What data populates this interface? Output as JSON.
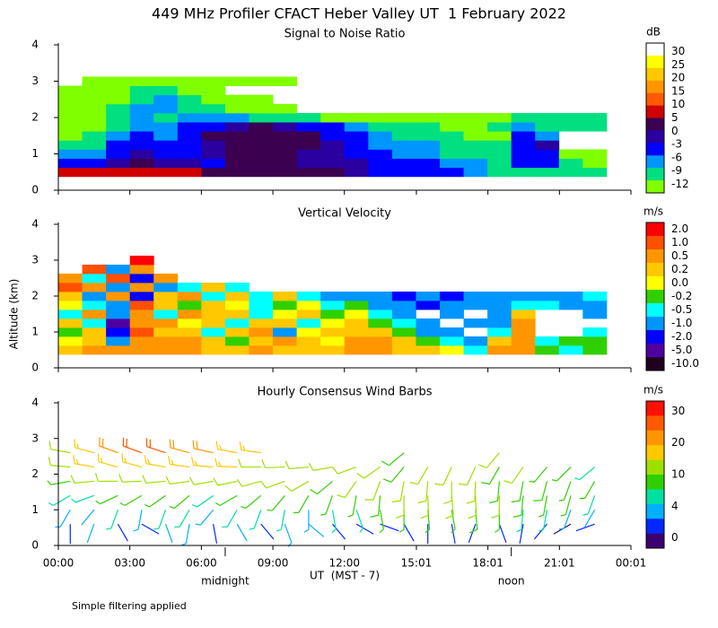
{
  "header": {
    "title": "449 MHz Profiler CFACT Heber Valley UT  1 February 2022",
    "y_label": "Altitude (km)",
    "x_label": "UT  (MST - 7)",
    "footnote": "Simple filtering applied"
  },
  "chart_data": [
    {
      "type": "heatmap",
      "title": "Signal to Noise Ratio",
      "xlim": [
        0,
        24.02
      ],
      "ylim": [
        0,
        4
      ],
      "yticks": [
        0,
        1,
        2,
        3,
        4
      ],
      "colorbar": {
        "label": "dB",
        "levels": [
          30,
          25,
          20,
          15,
          10,
          5,
          0,
          -3,
          -6,
          -9,
          -12
        ],
        "colors": [
          "#ffffff",
          "#ffff00",
          "#ffc800",
          "#ff9600",
          "#ff5a00",
          "#d00000",
          "#3c0050",
          "#2a00a0",
          "#0000ff",
          "#0096ff",
          "#00e080",
          "#80ff00"
        ]
      },
      "times": [
        0.5,
        1.5,
        2.5,
        3.5,
        4.5,
        5.5,
        6.5,
        7.5,
        8.5,
        9.5,
        10.5,
        11.5,
        12.5,
        13.5,
        14.5,
        15.5,
        16.5,
        17.5,
        18.5,
        19.5,
        20.5,
        21.5,
        22.5
      ],
      "altitudes": [
        0.5,
        0.75,
        1.0,
        1.25,
        1.5,
        1.75,
        2.0,
        2.25,
        2.5,
        2.75,
        3.0
      ],
      "values": [
        [
          6,
          6,
          6,
          7,
          6,
          6,
          5,
          3,
          3,
          2,
          2,
          1,
          0,
          -2,
          -2,
          -3,
          -4,
          -5,
          -7,
          -8,
          -8,
          -8,
          -9
        ],
        [
          -2,
          -2,
          0,
          1,
          -1,
          -1,
          -2,
          1,
          2,
          1,
          -1,
          0,
          -1,
          -2,
          -3,
          -4,
          -5,
          -6,
          -7,
          -4,
          -3,
          -9,
          -10
        ],
        [
          -6,
          -5,
          -3,
          -1,
          -3,
          -2,
          -1,
          2,
          3,
          2,
          0,
          -1,
          -2,
          -4,
          -5,
          -5,
          -7,
          -8,
          -8,
          -3,
          -2,
          -10,
          -10
        ],
        [
          -9,
          -8,
          -4,
          -2,
          -4,
          -3,
          0,
          3,
          4,
          3,
          1,
          -1,
          -2,
          -5,
          -6,
          -6,
          -8,
          -9,
          -9,
          -2,
          -1,
          null,
          null
        ],
        [
          -10,
          -9,
          -6,
          -3,
          -5,
          -2,
          1,
          4,
          4,
          4,
          2,
          -2,
          -3,
          -6,
          -7,
          -7,
          -9,
          -10,
          -10,
          -3,
          -5,
          null,
          null
        ],
        [
          -10,
          -10,
          -7,
          -5,
          -6,
          -4,
          -2,
          0,
          1,
          0,
          -2,
          -3,
          -5,
          -8,
          -9,
          -9,
          -10,
          -10,
          -9,
          -6,
          -7,
          -9,
          -8
        ],
        [
          -11,
          -11,
          -9,
          -6,
          -7,
          -6,
          -5,
          -5,
          -7,
          -8,
          -9,
          -10,
          -10,
          -11,
          -11,
          -10,
          -11,
          -11,
          -11,
          -9,
          -8,
          -8,
          -7
        ],
        [
          -11,
          -10,
          -8,
          -5,
          -5,
          -7,
          -9,
          -10,
          -11,
          -11,
          null,
          null,
          null,
          null,
          null,
          null,
          null,
          null,
          null,
          null,
          null,
          null,
          null
        ],
        [
          -11,
          -11,
          -10,
          -7,
          -6,
          -9,
          -10,
          -11,
          -11,
          null,
          null,
          null,
          null,
          null,
          null,
          null,
          null,
          null,
          null,
          null,
          null,
          null,
          null
        ],
        [
          -11,
          -11,
          -11,
          -9,
          -8,
          -10,
          -11,
          null,
          null,
          null,
          null,
          null,
          null,
          null,
          null,
          null,
          null,
          null,
          null,
          null,
          null,
          null,
          null
        ],
        [
          null,
          -11,
          -11,
          -11,
          -11,
          -11,
          -11,
          -11,
          -11,
          -11,
          null,
          null,
          null,
          null,
          null,
          null,
          null,
          null,
          null,
          null,
          null,
          null,
          null
        ]
      ]
    },
    {
      "type": "heatmap",
      "title": "Vertical Velocity",
      "xlim": [
        0,
        24.02
      ],
      "ylim": [
        0,
        4
      ],
      "yticks": [
        0,
        1,
        2,
        3,
        4
      ],
      "colorbar": {
        "label": "m/s",
        "levels": [
          {
            "value": 2,
            "label": "2.0"
          },
          {
            "value": 1,
            "label": "1.0"
          },
          0.5,
          0.2,
          {
            "value": 0,
            "label": "0.0"
          },
          -0.2,
          -0.5,
          {
            "value": -1,
            "label": "-1.0"
          },
          {
            "value": -2,
            "label": "-2.0"
          },
          {
            "value": -5,
            "label": "-5.0"
          },
          {
            "value": -10,
            "label": "-10.0"
          }
        ],
        "colors": [
          "#ff0000",
          "#ff5000",
          "#ff9600",
          "#ffc800",
          "#ffff00",
          "#30d000",
          "#00ffff",
          "#0096ff",
          "#0000ff",
          "#5000a0",
          "#200020"
        ]
      },
      "times": [
        0.5,
        1.5,
        2.5,
        3.5,
        4.5,
        5.5,
        6.5,
        7.5,
        8.5,
        9.5,
        10.5,
        11.5,
        12.5,
        13.5,
        14.5,
        15.5,
        16.5,
        17.5,
        18.5,
        19.5,
        20.5,
        21.5,
        22.5
      ],
      "altitudes": [
        0.5,
        0.75,
        1.0,
        1.25,
        1.5,
        1.75,
        2.0,
        2.25,
        2.5,
        2.75,
        3.0
      ],
      "values": [
        [
          0.3,
          0.6,
          0.5,
          0.7,
          0.6,
          0.5,
          0.3,
          0.4,
          0.6,
          0.3,
          0.2,
          0.4,
          0.6,
          0.7,
          0.4,
          0.2,
          0.1,
          -0.3,
          0.5,
          0.8,
          -0.1,
          -0.3,
          -0.1
        ],
        [
          0.1,
          0.4,
          -0.6,
          0.8,
          0.5,
          0.6,
          0.2,
          -0.1,
          0.4,
          0.6,
          0.3,
          0.1,
          0.5,
          0.6,
          0.2,
          -0.1,
          -0.3,
          -0.6,
          0.3,
          0.9,
          -0.4,
          -0.2,
          -0.1
        ],
        [
          -0.1,
          0.3,
          -1.2,
          1.2,
          0.3,
          0.4,
          -0.3,
          0.2,
          0.5,
          -0.6,
          0.1,
          0.3,
          0.4,
          0.3,
          -0.2,
          -0.6,
          -0.7,
          null,
          -0.4,
          0.7,
          null,
          null,
          -0.3
        ],
        [
          0.2,
          -0.3,
          -2.5,
          0.6,
          0.6,
          0.1,
          0.3,
          -0.4,
          0.2,
          0.4,
          -0.3,
          0.1,
          0.2,
          -0.1,
          -0.5,
          -0.8,
          null,
          -0.8,
          -0.6,
          0.5,
          null,
          null,
          null
        ],
        [
          -0.3,
          0.5,
          -0.8,
          0.9,
          -0.4,
          0.5,
          0.2,
          0.3,
          -0.5,
          0.1,
          0.2,
          -0.2,
          0.1,
          -0.3,
          -0.7,
          null,
          -0.9,
          null,
          -0.7,
          0.2,
          null,
          null,
          -0.6
        ],
        [
          0.1,
          -0.4,
          -0.6,
          1.5,
          0.3,
          -0.2,
          0.4,
          0.1,
          -0.3,
          -0.2,
          0.1,
          -0.4,
          -0.1,
          -0.6,
          -0.9,
          -1.2,
          -0.8,
          -0.7,
          -0.8,
          -0.3,
          -0.5,
          -0.6,
          -0.8
        ],
        [
          0.4,
          -0.7,
          0.5,
          -1.5,
          0.4,
          0.6,
          -0.5,
          0.3,
          -0.4,
          0.2,
          -0.3,
          -0.6,
          -0.8,
          -0.9,
          -1.1,
          -0.9,
          -1.2,
          -0.8,
          -0.9,
          -0.6,
          -0.7,
          -0.9,
          -0.5
        ],
        [
          1.2,
          0.6,
          -0.9,
          0.7,
          -0.6,
          -0.3,
          0.3,
          -0.4,
          null,
          null,
          null,
          null,
          null,
          null,
          null,
          null,
          null,
          null,
          null,
          null,
          null,
          null,
          null
        ],
        [
          0.8,
          -0.4,
          1.3,
          -1.1,
          0.5,
          null,
          null,
          null,
          null,
          null,
          null,
          null,
          null,
          null,
          null,
          null,
          null,
          null,
          null,
          null,
          null,
          null,
          null
        ],
        [
          null,
          1.5,
          -0.6,
          0.9,
          null,
          null,
          null,
          null,
          null,
          null,
          null,
          null,
          null,
          null,
          null,
          null,
          null,
          null,
          null,
          null,
          null,
          null,
          null
        ],
        [
          null,
          null,
          null,
          2.5,
          null,
          null,
          null,
          null,
          null,
          null,
          null,
          null,
          null,
          null,
          null,
          null,
          null,
          null,
          null,
          null,
          null,
          null,
          null
        ]
      ]
    },
    {
      "type": "barbs",
      "title": "Hourly Consensus Wind Barbs",
      "xlim": [
        0,
        24.02
      ],
      "ylim": [
        0,
        4
      ],
      "yticks": [
        0,
        1,
        2,
        3,
        4
      ],
      "xticks": [
        {
          "value": 0,
          "label": "00:00"
        },
        {
          "value": 3,
          "label": "03:00"
        },
        {
          "value": 6,
          "label": "06:00"
        },
        {
          "value": 9,
          "label": "09:00"
        },
        {
          "value": 12,
          "label": "12:00"
        },
        {
          "value": 15.02,
          "label": "15:01"
        },
        {
          "value": 18.02,
          "label": "18:01"
        },
        {
          "value": 21.02,
          "label": "21:01"
        },
        {
          "value": 24.02,
          "label": "00:01"
        }
      ],
      "annotations": [
        {
          "text": "midnight",
          "x": 7
        },
        {
          "text": "noon",
          "x": 19
        }
      ],
      "colorbar": {
        "label": "m/s",
        "levels": [
          30,
          20,
          10,
          4,
          0
        ],
        "colors": [
          "#ff1000",
          "#ff5a00",
          "#ff9600",
          "#ffc800",
          "#a0e000",
          "#30d000",
          "#00e0a0",
          "#00b0ff",
          "#0028ff",
          "#3c0070"
        ]
      },
      "times": [
        0.5,
        1.5,
        2.5,
        3.5,
        4.5,
        5.5,
        6.5,
        7.5,
        8.5,
        9.5,
        10.5,
        11.5,
        12.5,
        13.5,
        14.5,
        15.5,
        16.5,
        17.5,
        18.5,
        19.5,
        20.5,
        21.5,
        22.5
      ],
      "altitudes": [
        0.6,
        1.0,
        1.4,
        1.8,
        2.2,
        2.6
      ],
      "speed": [
        [
          3,
          4,
          3,
          2,
          4,
          5,
          3,
          4,
          3,
          5,
          4,
          3,
          3,
          2,
          2,
          3,
          2,
          3,
          2,
          3,
          2,
          1,
          3
        ],
        [
          5,
          4,
          6,
          5,
          6,
          6,
          5,
          6,
          7,
          6,
          5,
          6,
          6,
          8,
          9,
          9,
          8,
          10,
          9,
          7,
          6,
          5,
          4
        ],
        [
          7,
          6,
          8,
          9,
          9,
          8,
          7,
          8,
          8,
          9,
          8,
          8,
          9,
          10,
          11,
          12,
          11,
          12,
          11,
          10,
          9,
          8,
          6
        ],
        [
          9,
          11,
          12,
          13,
          12,
          12,
          11,
          11,
          12,
          12,
          11,
          10,
          12,
          12,
          11,
          12,
          12,
          11,
          10,
          10,
          10,
          9,
          8
        ],
        [
          13,
          15,
          17,
          18,
          17,
          16,
          15,
          15,
          14,
          14,
          13,
          12,
          12,
          11,
          10,
          11,
          12,
          11,
          10,
          11,
          9,
          8,
          7
        ],
        [
          14,
          18,
          22,
          24,
          24,
          22,
          20,
          18,
          17,
          null,
          null,
          null,
          null,
          null,
          10,
          null,
          null,
          null,
          12,
          null,
          null,
          null,
          null
        ]
      ],
      "direction": [
        [
          180,
          200,
          150,
          120,
          160,
          190,
          170,
          150,
          140,
          160,
          130,
          140,
          120,
          110,
          150,
          180,
          170,
          200,
          160,
          190,
          220,
          240,
          250
        ],
        [
          210,
          220,
          200,
          190,
          200,
          210,
          220,
          210,
          200,
          190,
          180,
          170,
          160,
          170,
          180,
          175,
          170,
          175,
          180,
          185,
          190,
          200,
          210
        ],
        [
          240,
          250,
          245,
          240,
          235,
          230,
          235,
          240,
          230,
          220,
          210,
          200,
          190,
          185,
          180,
          178,
          175,
          178,
          180,
          185,
          190,
          195,
          200
        ],
        [
          260,
          265,
          270,
          268,
          265,
          262,
          260,
          258,
          255,
          250,
          240,
          230,
          215,
          200,
          190,
          185,
          180,
          182,
          185,
          190,
          195,
          200,
          210
        ],
        [
          275,
          280,
          285,
          285,
          280,
          278,
          275,
          272,
          270,
          268,
          265,
          260,
          250,
          235,
          220,
          210,
          205,
          205,
          210,
          215,
          220,
          225,
          230
        ],
        [
          280,
          285,
          290,
          290,
          288,
          285,
          282,
          280,
          278,
          null,
          null,
          null,
          null,
          null,
          230,
          null,
          null,
          null,
          220,
          null,
          null,
          null,
          null
        ]
      ]
    }
  ]
}
